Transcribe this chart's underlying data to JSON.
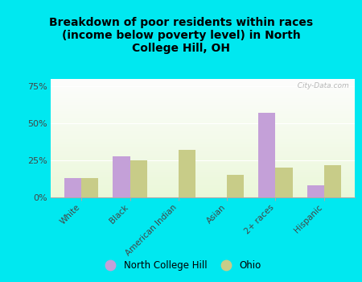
{
  "title": "Breakdown of poor residents within races\n(income below poverty level) in North\nCollege Hill, OH",
  "categories": [
    "White",
    "Black",
    "American Indian",
    "Asian",
    "2+ races",
    "Hispanic"
  ],
  "nch_values": [
    13,
    28,
    0,
    0,
    57,
    8
  ],
  "ohio_values": [
    13,
    25,
    32,
    15,
    20,
    22
  ],
  "nch_color": "#c4a0d8",
  "ohio_color": "#c8cc88",
  "background_outer": "#00e8f0",
  "ylim": [
    0,
    80
  ],
  "yticks": [
    0,
    25,
    50,
    75
  ],
  "ytick_labels": [
    "0%",
    "25%",
    "50%",
    "75%"
  ],
  "bar_width": 0.35,
  "legend_nch": "North College Hill",
  "legend_ohio": "Ohio",
  "watermark": "  City-Data.com"
}
